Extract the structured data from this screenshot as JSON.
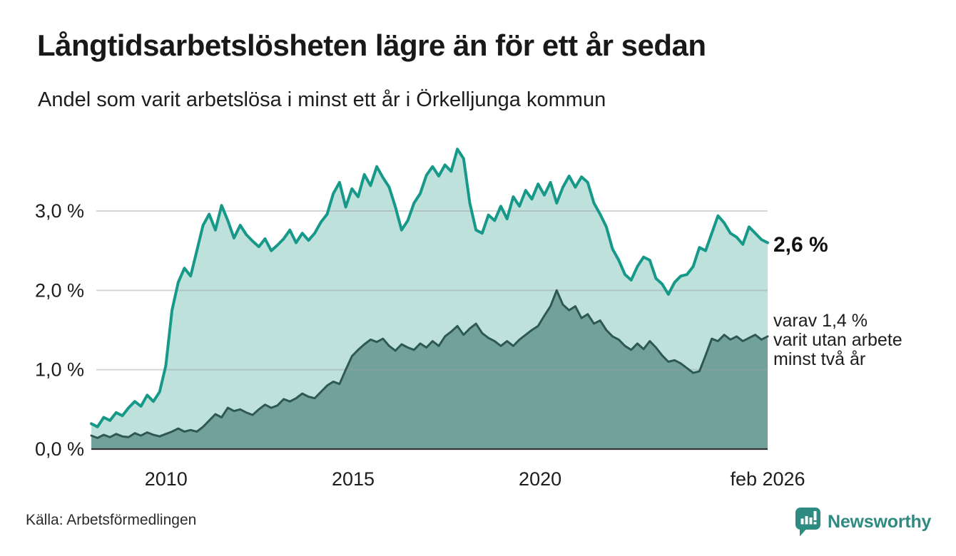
{
  "chart_data": {
    "type": "area",
    "title": "Långtidsarbetslösheten lägre än för ett år sedan",
    "subtitle": "Andel som varit arbetslösa i minst ett år i Örkelljunga kommun",
    "source": "Källa: Arbetsförmedlingen",
    "x_start": 2008.0,
    "x_end": 2026.083,
    "ylim": [
      0,
      3.9
    ],
    "grid": true,
    "legend_position": "end-of-line",
    "yticks": [
      {
        "value": 0,
        "label": "0,0 %"
      },
      {
        "value": 1,
        "label": "1,0 %"
      },
      {
        "value": 2,
        "label": "2,0 %"
      },
      {
        "value": 3,
        "label": "3,0 %"
      }
    ],
    "xticks": [
      {
        "value": 2010,
        "label": "2010"
      },
      {
        "value": 2015,
        "label": "2015"
      },
      {
        "value": 2020,
        "label": "2020"
      },
      {
        "value": 2026.083,
        "label": "feb 2026"
      }
    ],
    "series": [
      {
        "name": "Andel som varit arbetslösa minst ett år",
        "line_color": "#17998a",
        "fill_color": "#bfe1db",
        "line_width": 4,
        "values": [
          0.32,
          0.28,
          0.4,
          0.36,
          0.46,
          0.42,
          0.52,
          0.6,
          0.54,
          0.68,
          0.6,
          0.72,
          1.05,
          1.75,
          2.1,
          2.28,
          2.18,
          2.5,
          2.82,
          2.96,
          2.76,
          3.07,
          2.88,
          2.66,
          2.82,
          2.7,
          2.62,
          2.55,
          2.65,
          2.5,
          2.57,
          2.65,
          2.76,
          2.6,
          2.72,
          2.63,
          2.72,
          2.86,
          2.96,
          3.22,
          3.36,
          3.05,
          3.28,
          3.18,
          3.46,
          3.32,
          3.56,
          3.42,
          3.3,
          3.05,
          2.76,
          2.88,
          3.1,
          3.22,
          3.45,
          3.56,
          3.44,
          3.58,
          3.5,
          3.78,
          3.66,
          3.1,
          2.76,
          2.72,
          2.95,
          2.88,
          3.06,
          2.9,
          3.18,
          3.06,
          3.26,
          3.15,
          3.34,
          3.2,
          3.36,
          3.1,
          3.3,
          3.44,
          3.3,
          3.43,
          3.36,
          3.1,
          2.96,
          2.8,
          2.52,
          2.38,
          2.2,
          2.13,
          2.3,
          2.42,
          2.38,
          2.15,
          2.08,
          1.95,
          2.1,
          2.18,
          2.2,
          2.3,
          2.54,
          2.5,
          2.72,
          2.94,
          2.85,
          2.72,
          2.67,
          2.58,
          2.8,
          2.72,
          2.64,
          2.6
        ]
      },
      {
        "name": "varav utan arbete minst två år",
        "line_color": "#2e5953",
        "fill_color": "#72a19b",
        "line_width": 3,
        "values": [
          0.17,
          0.14,
          0.18,
          0.15,
          0.19,
          0.16,
          0.15,
          0.2,
          0.17,
          0.21,
          0.18,
          0.16,
          0.19,
          0.22,
          0.26,
          0.22,
          0.24,
          0.22,
          0.28,
          0.36,
          0.44,
          0.4,
          0.52,
          0.48,
          0.5,
          0.46,
          0.43,
          0.5,
          0.56,
          0.52,
          0.55,
          0.63,
          0.6,
          0.64,
          0.7,
          0.66,
          0.64,
          0.72,
          0.8,
          0.85,
          0.82,
          1.0,
          1.17,
          1.25,
          1.32,
          1.38,
          1.35,
          1.39,
          1.3,
          1.24,
          1.32,
          1.28,
          1.25,
          1.33,
          1.28,
          1.36,
          1.3,
          1.42,
          1.48,
          1.55,
          1.44,
          1.52,
          1.58,
          1.46,
          1.4,
          1.36,
          1.3,
          1.36,
          1.3,
          1.38,
          1.44,
          1.5,
          1.55,
          1.68,
          1.8,
          2.0,
          1.82,
          1.75,
          1.8,
          1.65,
          1.7,
          1.58,
          1.62,
          1.5,
          1.42,
          1.38,
          1.3,
          1.25,
          1.33,
          1.26,
          1.36,
          1.28,
          1.18,
          1.1,
          1.12,
          1.08,
          1.02,
          0.96,
          0.98,
          1.18,
          1.39,
          1.36,
          1.44,
          1.38,
          1.42,
          1.36,
          1.4,
          1.44,
          1.38,
          1.42
        ]
      }
    ],
    "annotations": {
      "total_label": "2,6 %",
      "sub_lines": [
        "varav 1,4 %",
        "varit utan arbete",
        "minst två år"
      ]
    },
    "axis_colors": {
      "gridline": "#9aa0a0",
      "baseline": "#333333",
      "tick_text": "#1d1d1d"
    }
  },
  "brand": {
    "name": "Newsworthy",
    "color": "#2e8b82"
  }
}
